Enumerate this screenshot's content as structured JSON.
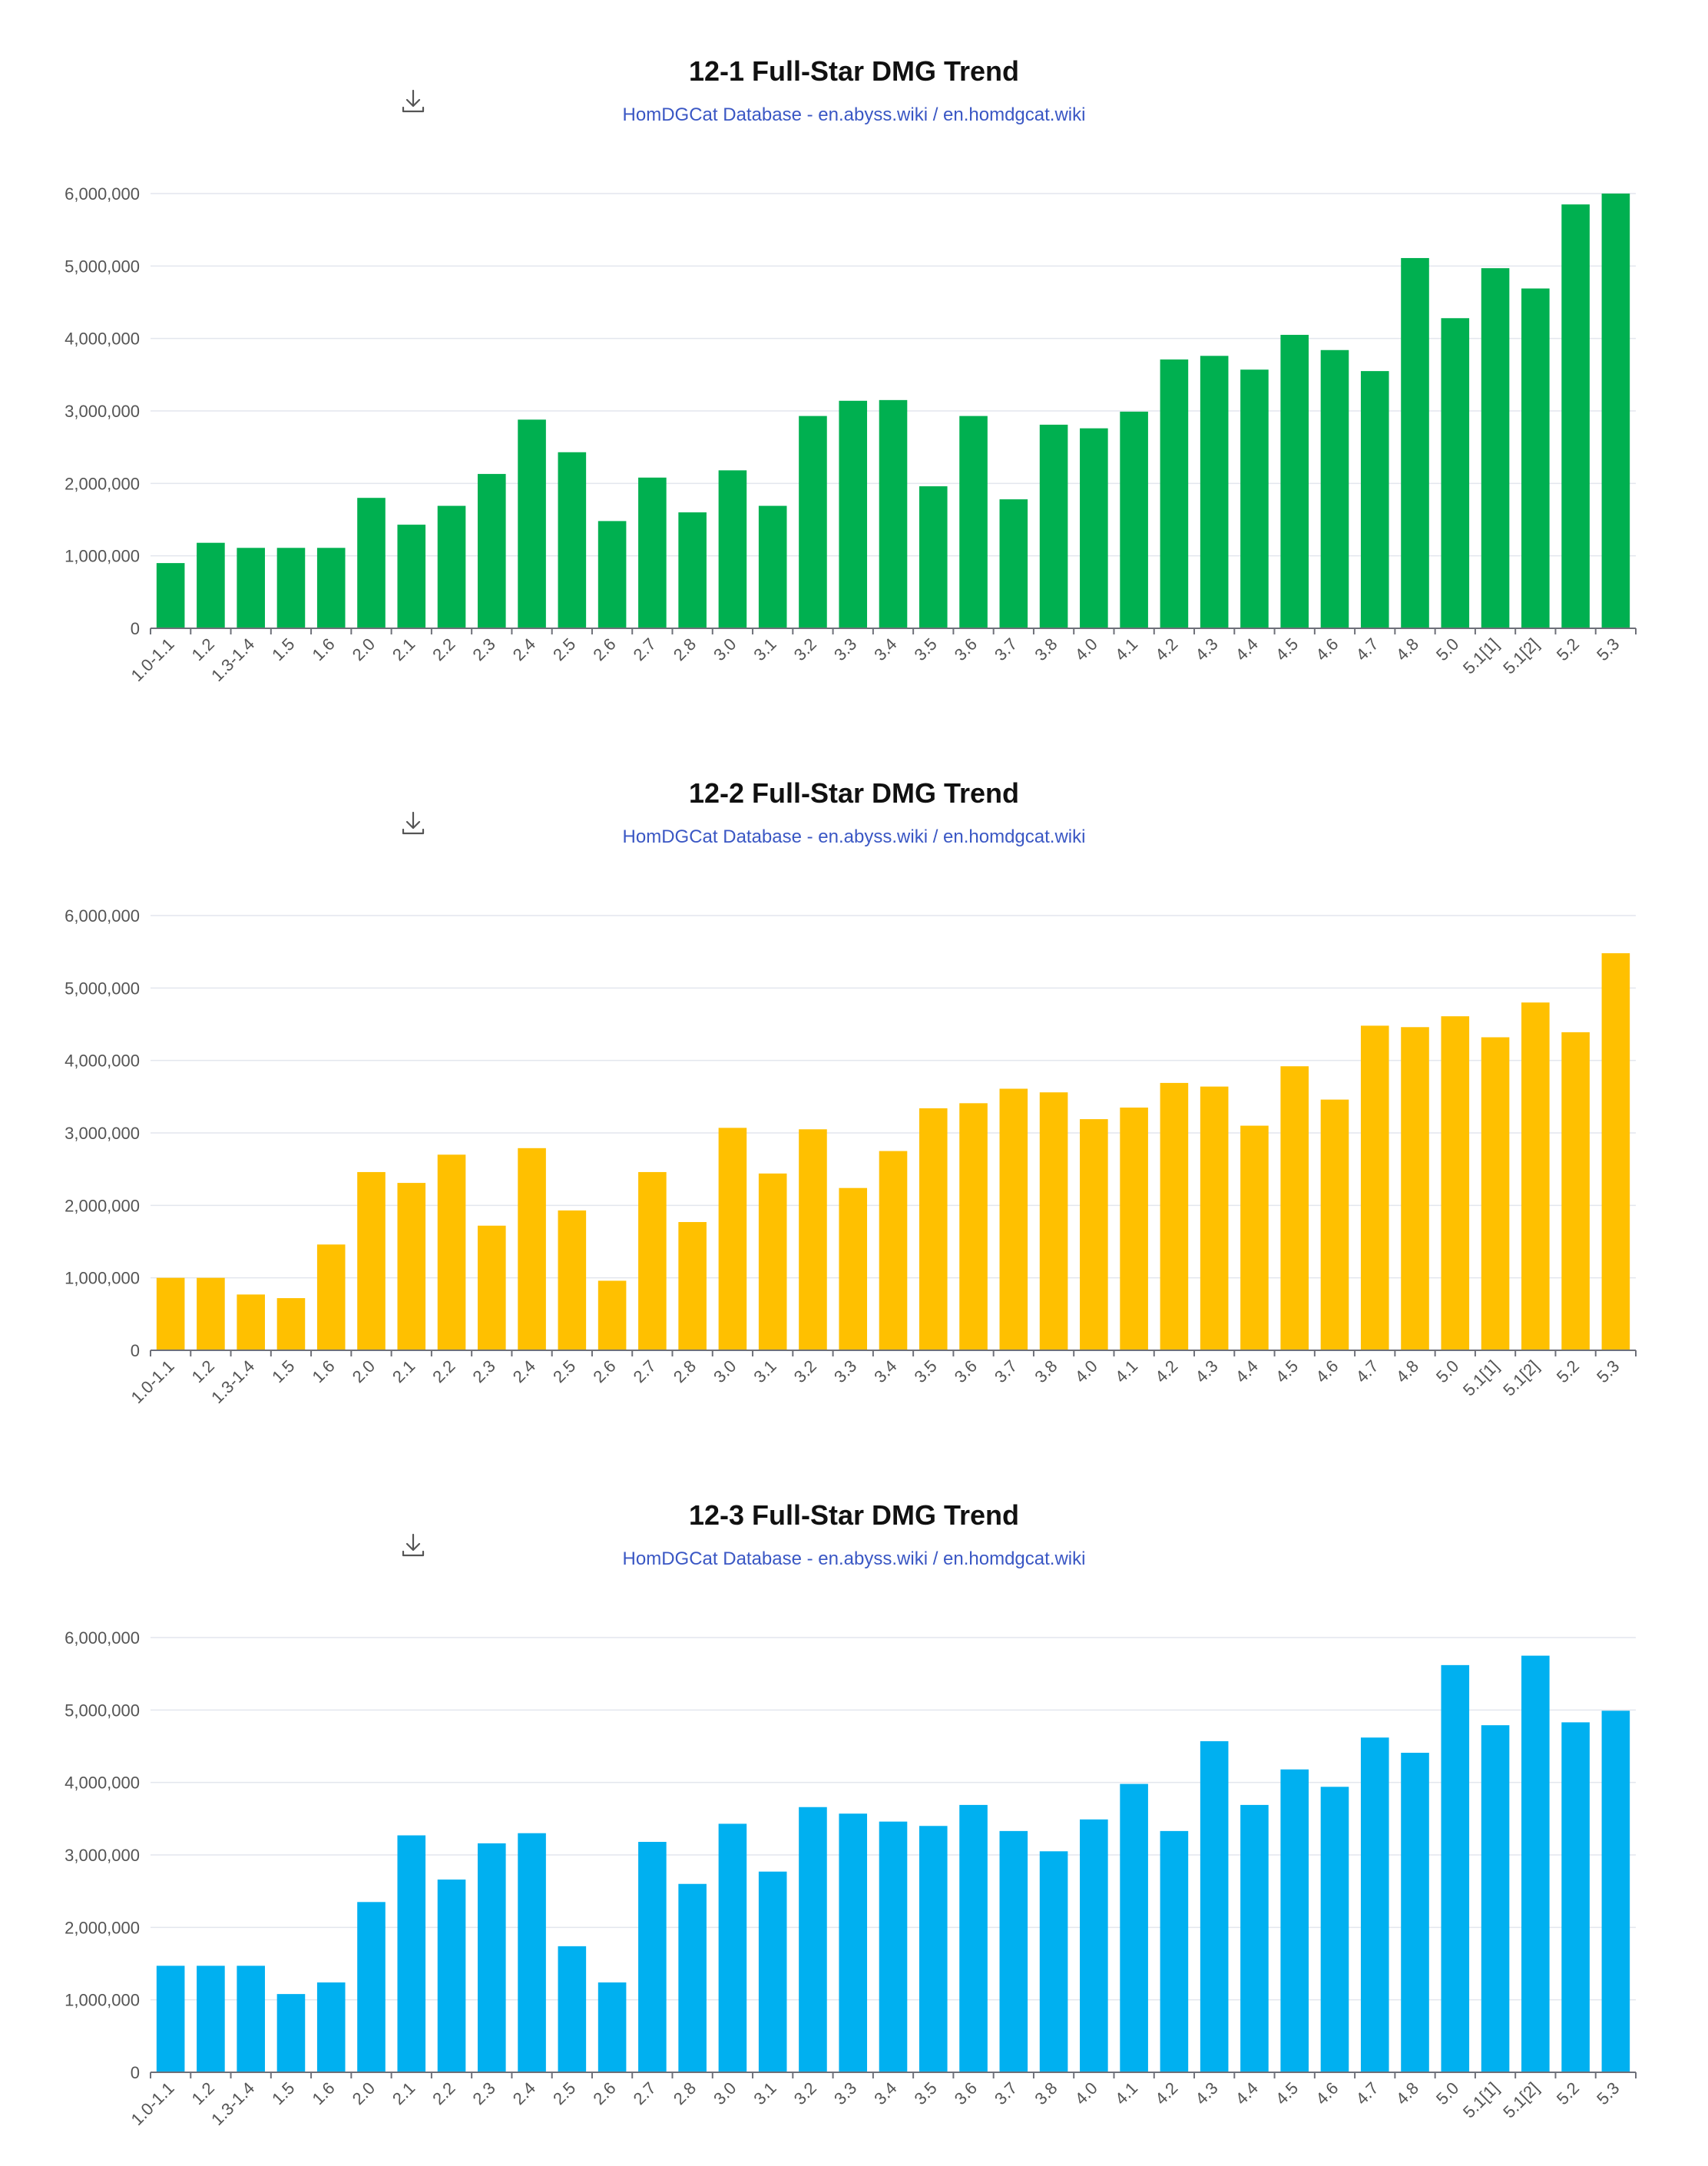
{
  "categories": [
    "1.0-1.1",
    "1.2",
    "1.3-1.4",
    "1.5",
    "1.6",
    "2.0",
    "2.1",
    "2.2",
    "2.3",
    "2.4",
    "2.5",
    "2.6",
    "2.7",
    "2.8",
    "3.0",
    "3.1",
    "3.2",
    "3.3",
    "3.4",
    "3.5",
    "3.6",
    "3.7",
    "3.8",
    "4.0",
    "4.1",
    "4.2",
    "4.3",
    "4.4",
    "4.5",
    "4.6",
    "4.7",
    "4.8",
    "5.0",
    "5.1[1]",
    "5.1[2]",
    "5.2",
    "5.3"
  ],
  "chart_data": [
    {
      "type": "bar",
      "title": "12-1 Full-Star DMG Trend",
      "subtitle": "HomDGCat Database - en.abyss.wiki / en.homdgcat.wiki",
      "color": "#00b050",
      "ylim": [
        0,
        6000000
      ],
      "yticks": [
        0,
        1000000,
        2000000,
        3000000,
        4000000,
        5000000,
        6000000
      ],
      "ytick_labels": [
        "0",
        "1,000,000",
        "2,000,000",
        "3,000,000",
        "4,000,000",
        "5,000,000",
        "6,000,000"
      ],
      "values": [
        900000,
        1180000,
        1110000,
        1110000,
        1110000,
        1800000,
        1430000,
        1690000,
        2130000,
        2880000,
        2430000,
        1480000,
        2080000,
        1600000,
        2180000,
        1690000,
        2930000,
        3140000,
        3150000,
        1960000,
        2930000,
        1780000,
        2810000,
        2760000,
        2990000,
        3710000,
        3760000,
        3570000,
        4050000,
        3840000,
        3550000,
        5110000,
        4280000,
        4970000,
        4690000,
        5850000,
        6000000
      ]
    },
    {
      "type": "bar",
      "title": "12-2 Full-Star DMG Trend",
      "subtitle": "HomDGCat Database - en.abyss.wiki / en.homdgcat.wiki",
      "color": "#ffc000",
      "ylim": [
        0,
        6000000
      ],
      "yticks": [
        0,
        1000000,
        2000000,
        3000000,
        4000000,
        5000000,
        6000000
      ],
      "ytick_labels": [
        "0",
        "1,000,000",
        "2,000,000",
        "3,000,000",
        "4,000,000",
        "5,000,000",
        "6,000,000"
      ],
      "values": [
        1000000,
        1000000,
        770000,
        720000,
        1460000,
        2460000,
        2310000,
        2700000,
        1720000,
        2790000,
        1930000,
        960000,
        2460000,
        1770000,
        3070000,
        2440000,
        3050000,
        2240000,
        2750000,
        3340000,
        3410000,
        3610000,
        3560000,
        3190000,
        3350000,
        3690000,
        3640000,
        3100000,
        3920000,
        3460000,
        4480000,
        4460000,
        4610000,
        4320000,
        4800000,
        4390000,
        5480000
      ]
    },
    {
      "type": "bar",
      "title": "12-3 Full-Star DMG Trend",
      "subtitle": "HomDGCat Database - en.abyss.wiki / en.homdgcat.wiki",
      "color": "#00b0f0",
      "ylim": [
        0,
        6000000
      ],
      "yticks": [
        0,
        1000000,
        2000000,
        3000000,
        4000000,
        5000000,
        6000000
      ],
      "ytick_labels": [
        "0",
        "1,000,000",
        "2,000,000",
        "3,000,000",
        "4,000,000",
        "5,000,000",
        "6,000,000"
      ],
      "values": [
        1470000,
        1470000,
        1470000,
        1080000,
        1240000,
        2350000,
        3270000,
        2660000,
        3160000,
        3300000,
        1740000,
        1240000,
        3180000,
        2600000,
        3430000,
        2770000,
        3660000,
        3570000,
        3460000,
        3400000,
        3690000,
        3330000,
        3050000,
        3490000,
        3980000,
        3330000,
        4570000,
        3690000,
        4180000,
        3940000,
        4620000,
        4410000,
        5620000,
        4790000,
        5750000,
        4830000,
        4990000
      ]
    }
  ]
}
